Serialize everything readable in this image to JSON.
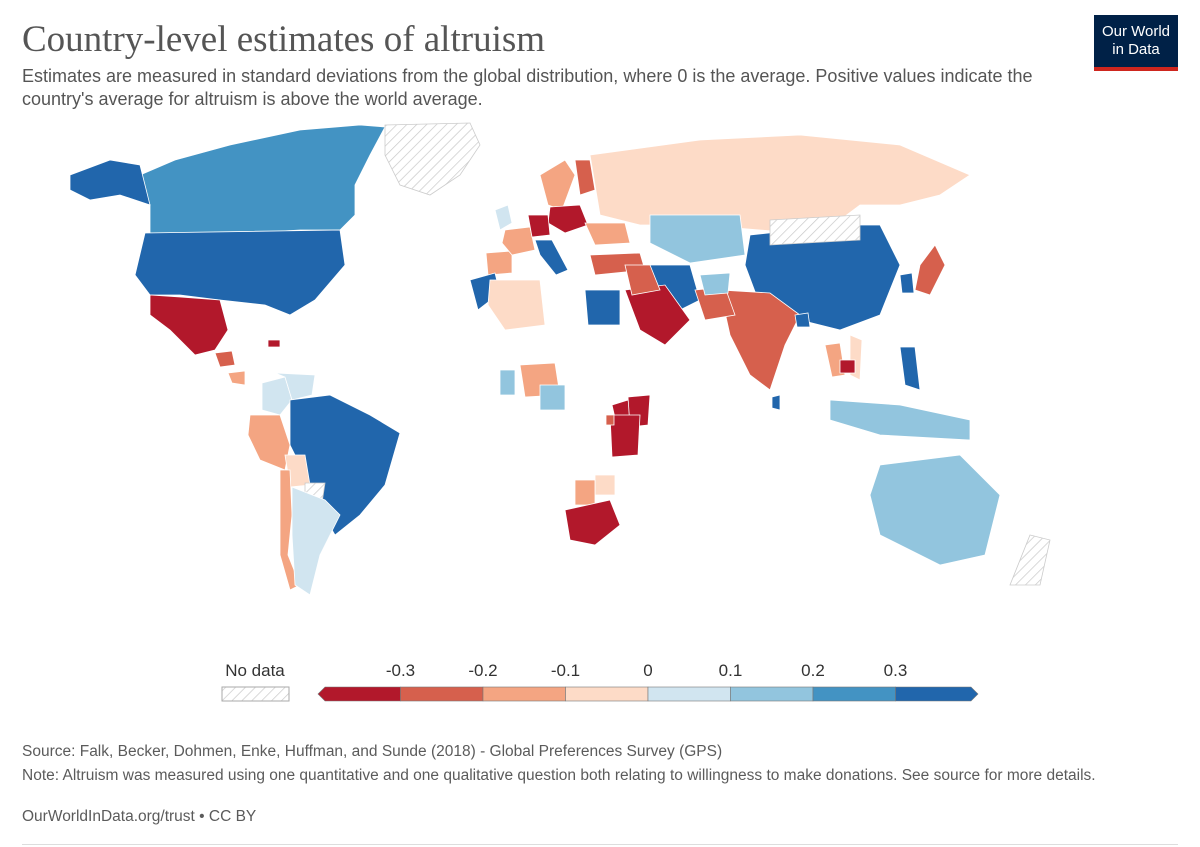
{
  "header": {
    "title": "Country-level estimates of altruism",
    "subtitle": "Estimates are measured in standard deviations from the global distribution, where 0 is the average. Positive values indicate the country's average for altruism is above the world average.",
    "logo_line1": "Our World",
    "logo_line2": "in Data"
  },
  "legend": {
    "no_data_label": "No data",
    "bins": [
      {
        "label": "-0.3",
        "color": "#b2182b"
      },
      {
        "label": "-0.2",
        "color": "#d6604d"
      },
      {
        "label": "-0.1",
        "color": "#f4a582"
      },
      {
        "label": "0",
        "color": "#fddbc7"
      },
      {
        "label": "0.1",
        "color": "#d1e5f0"
      },
      {
        "label": "0.2",
        "color": "#92c5de"
      },
      {
        "label": "0.3",
        "color": "#4393c3"
      },
      {
        "label": "",
        "color": "#2166ac"
      }
    ]
  },
  "footer": {
    "source": "Source: Falk, Becker, Dohmen, Enke, Huffman, and Sunde (2018) - Global Preferences Survey (GPS)",
    "note": "Note: Altruism was measured using one quantitative and one qualitative question both relating to willingness to make donations. See source for more details.",
    "url": "OurWorldInData.org/trust • CC BY"
  },
  "colors": {
    "no_data_stroke": "#cccccc",
    "border": "#ffffff",
    "brand": "#002147",
    "brand_accent": "#ce261e"
  },
  "regions": [
    {
      "name": "Canada",
      "bin": 6
    },
    {
      "name": "Alaska",
      "bin": 7
    },
    {
      "name": "Greenland",
      "bin": -1
    },
    {
      "name": "United States",
      "bin": 7
    },
    {
      "name": "Mexico",
      "bin": 0
    },
    {
      "name": "Guatemala",
      "bin": 1
    },
    {
      "name": "Nicaragua",
      "bin": 2
    },
    {
      "name": "Haiti",
      "bin": 0
    },
    {
      "name": "Colombia",
      "bin": 4
    },
    {
      "name": "Venezuela",
      "bin": 4
    },
    {
      "name": "Brazil",
      "bin": 7
    },
    {
      "name": "Peru",
      "bin": 2
    },
    {
      "name": "Bolivia",
      "bin": 3
    },
    {
      "name": "Paraguay",
      "bin": -1
    },
    {
      "name": "Chile",
      "bin": 2
    },
    {
      "name": "Argentina",
      "bin": 4
    },
    {
      "name": "United Kingdom",
      "bin": 4
    },
    {
      "name": "Spain",
      "bin": 2
    },
    {
      "name": "France",
      "bin": 2
    },
    {
      "name": "Italy",
      "bin": 7
    },
    {
      "name": "Sweden",
      "bin": 2
    },
    {
      "name": "Finland",
      "bin": 1
    },
    {
      "name": "Poland",
      "bin": 0
    },
    {
      "name": "Germany",
      "bin": 0
    },
    {
      "name": "Ukraine",
      "bin": 2
    },
    {
      "name": "Russia",
      "bin": 3
    },
    {
      "name": "Turkey",
      "bin": 1
    },
    {
      "name": "Iran",
      "bin": 7
    },
    {
      "name": "Kazakhstan",
      "bin": 5
    },
    {
      "name": "China",
      "bin": 7
    },
    {
      "name": "Mongolia",
      "bin": -1
    },
    {
      "name": "Japan",
      "bin": 1
    },
    {
      "name": "South Korea",
      "bin": 7
    },
    {
      "name": "India",
      "bin": 1
    },
    {
      "name": "Pakistan",
      "bin": 1
    },
    {
      "name": "Afghanistan",
      "bin": 5
    },
    {
      "name": "Bangladesh",
      "bin": 7
    },
    {
      "name": "Sri Lanka",
      "bin": 7
    },
    {
      "name": "Saudi Arabia",
      "bin": 0
    },
    {
      "name": "Iraq",
      "bin": 1
    },
    {
      "name": "Egypt",
      "bin": 7
    },
    {
      "name": "Morocco",
      "bin": 7
    },
    {
      "name": "Algeria",
      "bin": 3
    },
    {
      "name": "Nigeria",
      "bin": 2
    },
    {
      "name": "Cameroon",
      "bin": 5
    },
    {
      "name": "Ghana",
      "bin": 5
    },
    {
      "name": "Uganda",
      "bin": 0
    },
    {
      "name": "Kenya",
      "bin": 0
    },
    {
      "name": "Tanzania",
      "bin": 0
    },
    {
      "name": "Rwanda",
      "bin": 1
    },
    {
      "name": "Zimbabwe",
      "bin": 3
    },
    {
      "name": "Botswana",
      "bin": 2
    },
    {
      "name": "South Africa",
      "bin": 0
    },
    {
      "name": "Thailand",
      "bin": 2
    },
    {
      "name": "Vietnam",
      "bin": 3
    },
    {
      "name": "Cambodia",
      "bin": 0
    },
    {
      "name": "Philippines",
      "bin": 7
    },
    {
      "name": "Indonesia",
      "bin": 5
    },
    {
      "name": "Australia",
      "bin": 5
    },
    {
      "name": "New Zealand",
      "bin": -1
    }
  ]
}
